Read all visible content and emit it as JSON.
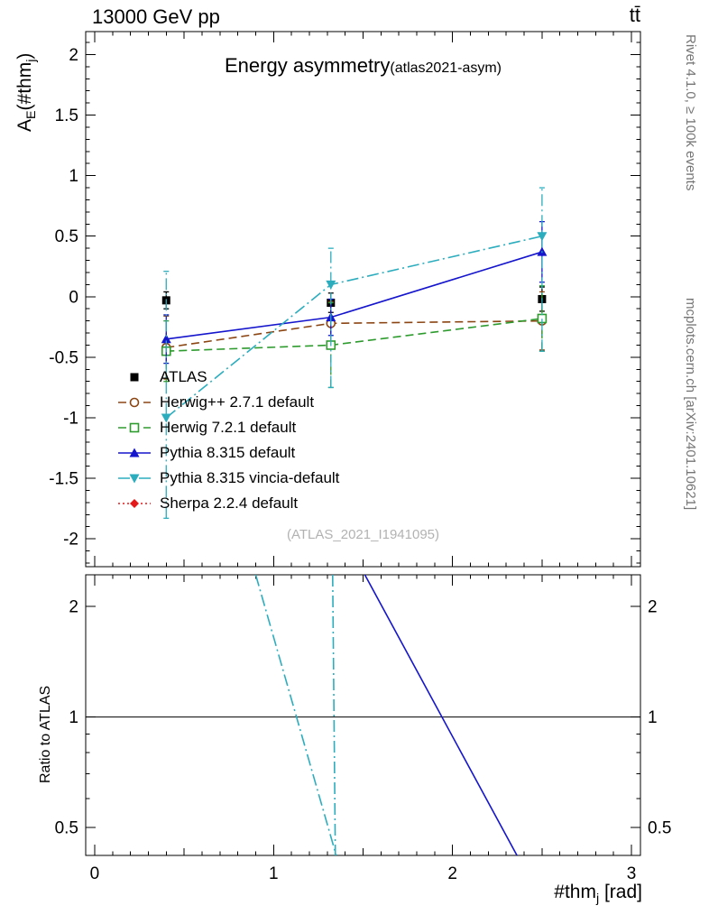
{
  "header": {
    "left": "13000 GeV pp",
    "right": "tt̄"
  },
  "title": {
    "main": "Energy asymmetry",
    "paren": "(atlas2021-asym)"
  },
  "watermark": "(ATLAS_2021_I1941095)",
  "side_notes": {
    "top_right": "Rivet 4.1.0, ≥ 100k events",
    "bottom_right": "mcplots.cern.ch [arXiv:2401.10621]"
  },
  "labels": {
    "y_main_parts": [
      "A",
      "E",
      "(#thm",
      "j",
      ")"
    ],
    "x_parts": [
      "#thm",
      "j",
      " [rad]"
    ],
    "ratio_y": "Ratio to ATLAS"
  },
  "chart_data": {
    "type": "line",
    "title": "Energy asymmetry (atlas2021-asym)",
    "xlabel": "#thm_j [rad]",
    "ylabel": "A_E(#thm_j)",
    "ratio_ylabel": "Ratio to ATLAS",
    "x": [
      0.4,
      1.32,
      2.5
    ],
    "xlim": [
      -0.05,
      3.05
    ],
    "ylim_main": [
      -2.23,
      2.19
    ],
    "ratio_scale": "log",
    "ylim_ratio": [
      0.42,
      2.44
    ],
    "x_ticks_major": [
      0,
      1,
      2,
      3
    ],
    "y_ticks_main": [
      -2,
      -1.5,
      -1,
      -0.5,
      0,
      0.5,
      1,
      1.5,
      2
    ],
    "y_ticks_ratio": [
      0.5,
      1,
      2
    ],
    "y_ticks_ratio_minor": [
      0.5,
      0.6,
      0.7,
      0.8,
      0.9,
      1,
      2
    ],
    "series": [
      {
        "name": "ATLAS",
        "color": "#000000",
        "marker": "square-filled",
        "line": "none",
        "values": [
          -0.03,
          -0.05,
          -0.02
        ],
        "err": [
          0.07,
          0.08,
          0.1
        ]
      },
      {
        "name": "Herwig++ 2.7.1 default",
        "color": "#8b4513",
        "marker": "circle-open",
        "line": "dashed",
        "values": [
          -0.42,
          -0.22,
          -0.2
        ],
        "err": [
          0.26,
          0.18,
          0.24
        ]
      },
      {
        "name": "Herwig 7.2.1 default",
        "color": "#2e9b2e",
        "marker": "square-open",
        "line": "dashed",
        "values": [
          -0.45,
          -0.4,
          -0.18
        ],
        "err": [
          0.25,
          0.35,
          0.27
        ]
      },
      {
        "name": "Pythia 8.315 default",
        "color": "#1515cd",
        "marker": "triangle-up",
        "line": "solid",
        "values": [
          -0.35,
          -0.17,
          0.37
        ],
        "err": [
          0.2,
          0.15,
          0.25
        ]
      },
      {
        "name": "Pythia 8.315 vincia-default",
        "color": "#2cadbe",
        "marker": "triangle-down",
        "line": "dashdot",
        "values": [
          -1.0,
          0.1,
          0.5
        ],
        "err_low": [
          0.83,
          0.85,
          0.95
        ],
        "err_high": [
          1.21,
          0.3,
          0.4
        ]
      },
      {
        "name": "Sherpa 2.2.4 default",
        "color": "#e3191c",
        "marker": "diamond",
        "line": "dotted",
        "values": [
          null,
          null,
          null
        ]
      }
    ],
    "ratio_lines": [
      {
        "name": "unity",
        "color": "#000000",
        "line": "solid",
        "points": [
          [
            -0.05,
            1
          ],
          [
            3.05,
            1
          ]
        ]
      },
      {
        "name": "pythia-default-ratio",
        "color": "#1515cd",
        "line": "solid",
        "points": [
          [
            1.51,
            2.44
          ],
          [
            2.36,
            0.42
          ]
        ]
      },
      {
        "name": "pythia-vincia-ratio-a",
        "color": "#2cadbe",
        "line": "dashdot",
        "points": [
          [
            0.9,
            2.44
          ],
          [
            1.35,
            0.42
          ]
        ]
      },
      {
        "name": "pythia-vincia-ratio-b",
        "color": "#2cadbe",
        "line": "dashdot",
        "points": [
          [
            1.33,
            2.44
          ],
          [
            1.345,
            0.42
          ]
        ]
      }
    ]
  }
}
